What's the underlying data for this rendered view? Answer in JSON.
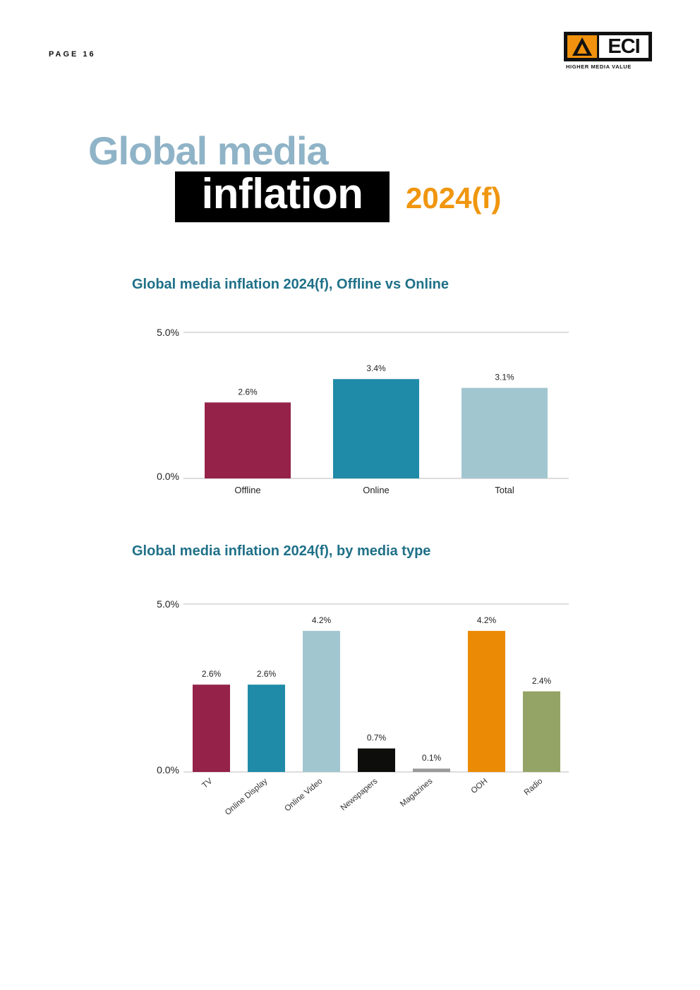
{
  "page": {
    "label": "PAGE 16"
  },
  "logo": {
    "text": "ECI",
    "tagline": "HIGHER MEDIA VALUE"
  },
  "hero": {
    "line1": "Global media",
    "line2": "inflation",
    "year": "2024(f)"
  },
  "colors": {
    "hero_blue": "#8fb3c7",
    "accent_orange": "#f0960f",
    "title_teal": "#1f7088",
    "offline": "#952248",
    "online": "#1f8ba8",
    "total": "#a2c6cf",
    "newspapers": "#0d0d0b",
    "magazines": "#999999",
    "ooh": "#ea8a05",
    "radio": "#94a466"
  },
  "chart_data": [
    {
      "type": "bar",
      "title": "Global media inflation 2024(f), Offline vs Online",
      "categories": [
        "Offline",
        "Online",
        "Total"
      ],
      "values": [
        2.6,
        3.4,
        3.1
      ],
      "value_labels": [
        "2.6%",
        "3.4%",
        "3.1%"
      ],
      "colors": [
        "#952248",
        "#1f8ba8",
        "#a2c6cf"
      ],
      "yticks": [
        "0.0%",
        "5.0%"
      ],
      "ylim": [
        0,
        5
      ],
      "grid": true,
      "xlabel": "",
      "ylabel": ""
    },
    {
      "type": "bar",
      "title": "Global media inflation 2024(f), by media type",
      "categories": [
        "TV",
        "Online Display",
        "Online Video",
        "Newspapers",
        "Magazines",
        "OOH",
        "Radio"
      ],
      "values": [
        2.6,
        2.6,
        4.2,
        0.7,
        0.1,
        4.2,
        2.4
      ],
      "value_labels": [
        "2.6%",
        "2.6%",
        "4.2%",
        "0.7%",
        "0.1%",
        "4.2%",
        "2.4%"
      ],
      "colors": [
        "#952248",
        "#1f8ba8",
        "#a2c6cf",
        "#0d0d0b",
        "#999999",
        "#ea8a05",
        "#94a466"
      ],
      "yticks": [
        "0.0%",
        "5.0%"
      ],
      "ylim": [
        0,
        5
      ],
      "grid": true,
      "xlabel": "",
      "ylabel": ""
    }
  ]
}
